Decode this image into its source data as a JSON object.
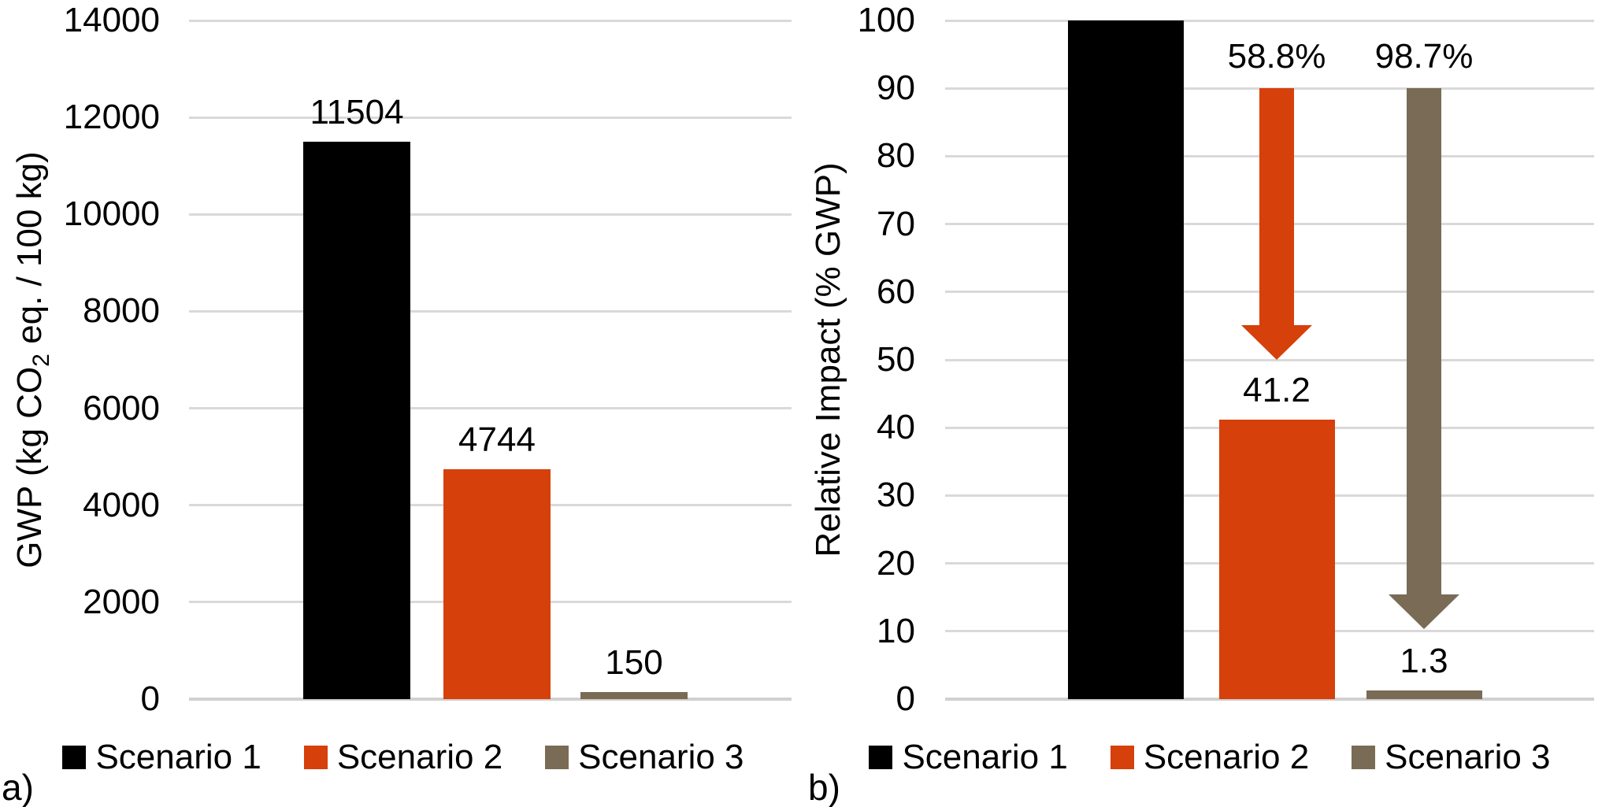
{
  "figure": {
    "background": "#FFFFFF",
    "text_color": "#000000",
    "gridline_color": "#D9D9D9",
    "colors": {
      "scenario1": "#000000",
      "scenario2": "#D6400A",
      "scenario3": "#796B55"
    }
  },
  "chart_data": [
    {
      "type": "bar",
      "panel_label": "a)",
      "ylabel_pre": "GWP (kg CO",
      "ylabel_sub": "2",
      "ylabel_post": " eq. / 100 kg)",
      "ylim": [
        0,
        14000
      ],
      "yticks": [
        0,
        2000,
        4000,
        6000,
        8000,
        10000,
        12000,
        14000
      ],
      "grid": true,
      "categories": [
        "Scenario 1",
        "Scenario 2",
        "Scenario 3"
      ],
      "values": [
        11504,
        4744,
        150
      ],
      "bar_labels": [
        "11504",
        "4744",
        "150"
      ],
      "colors": [
        "#000000",
        "#D6400A",
        "#796B55"
      ],
      "legend_position": "bottom",
      "legend": [
        {
          "label": "Scenario 1",
          "color": "#000000"
        },
        {
          "label": "Scenario 2",
          "color": "#D6400A"
        },
        {
          "label": "Scenario 3",
          "color": "#796B55"
        }
      ],
      "annotations": []
    },
    {
      "type": "bar",
      "panel_label": "b)",
      "ylabel": "Relative Impact (% GWP)",
      "ylim": [
        0,
        100
      ],
      "yticks": [
        0,
        10,
        20,
        30,
        40,
        50,
        60,
        70,
        80,
        90,
        100
      ],
      "grid": true,
      "categories": [
        "Scenario 1",
        "Scenario 2",
        "Scenario 3"
      ],
      "values": [
        100,
        41.2,
        1.3
      ],
      "bar_labels": [
        null,
        "41.2",
        "1.3"
      ],
      "colors": [
        "#000000",
        "#D6400A",
        "#796B55"
      ],
      "legend_position": "bottom",
      "legend": [
        {
          "label": "Scenario 1",
          "color": "#000000"
        },
        {
          "label": "Scenario 2",
          "color": "#D6400A"
        },
        {
          "label": "Scenario 3",
          "color": "#796B55"
        }
      ],
      "annotations": [
        {
          "type": "down-arrow",
          "label": "58.8%",
          "category_index": 1,
          "from": 90,
          "to": 50,
          "color": "#D6400A"
        },
        {
          "type": "down-arrow",
          "label": "98.7%",
          "category_index": 2,
          "from": 90,
          "to": 10.3,
          "color": "#796B55"
        }
      ]
    }
  ]
}
